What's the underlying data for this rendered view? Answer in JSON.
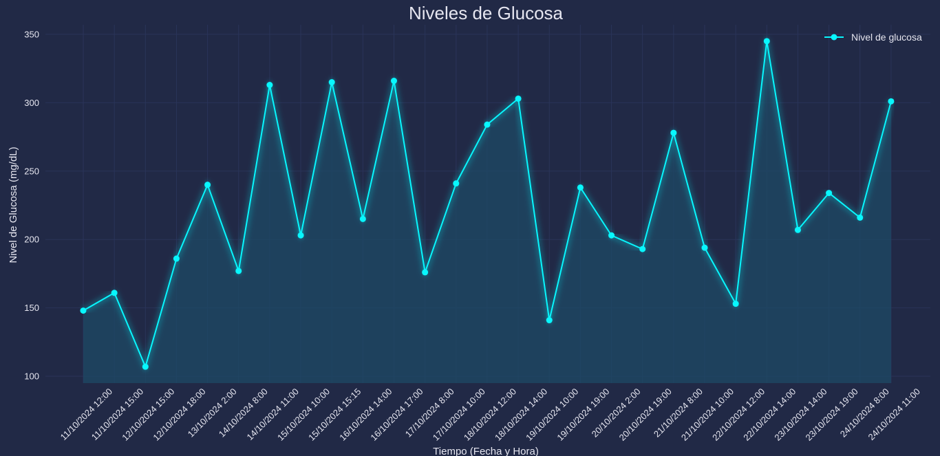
{
  "chart_data": {
    "type": "line",
    "title": "Niveles de Glucosa",
    "xlabel": "Tiempo (Fecha y Hora)",
    "ylabel": "Nivel de Glucosa (mg/dL)",
    "ylim": [
      95,
      357
    ],
    "yticks": [
      100,
      150,
      200,
      250,
      300,
      350
    ],
    "grid": true,
    "legend_position": "top-right",
    "area_fill": true,
    "colors": {
      "background": "#212946",
      "line": "#08F7FE",
      "grid": "#2A3459",
      "fill": "#1E4A66"
    },
    "categories": [
      "11/10/2024 12:00",
      "11/10/2024 15:00",
      "12/10/2024 15:00",
      "12/10/2024 18:00",
      "13/10/2024 2:00",
      "14/10/2024 8:00",
      "14/10/2024 11:00",
      "15/10/2024 10:00",
      "15/10/2024 15:15",
      "16/10/2024 14:00",
      "16/10/2024 17:00",
      "17/10/2024 8:00",
      "17/10/2024 10:00",
      "18/10/2024 12:00",
      "18/10/2024 14:00",
      "19/10/2024 10:00",
      "19/10/2024 19:00",
      "20/10/2024 2:00",
      "20/10/2024 19:00",
      "21/10/2024 8:00",
      "21/10/2024 10:00",
      "22/10/2024 12:00",
      "22/10/2024 14:00",
      "23/10/2024 14:00",
      "23/10/2024 19:00",
      "24/10/2024 8:00",
      "24/10/2024 11:00"
    ],
    "series": [
      {
        "name": "Nivel de glucosa",
        "values": [
          148,
          161,
          107,
          186,
          240,
          177,
          313,
          203,
          315,
          215,
          316,
          176,
          241,
          284,
          303,
          141,
          238,
          203,
          193,
          278,
          194,
          153,
          345,
          207,
          234,
          216,
          301
        ]
      }
    ]
  }
}
